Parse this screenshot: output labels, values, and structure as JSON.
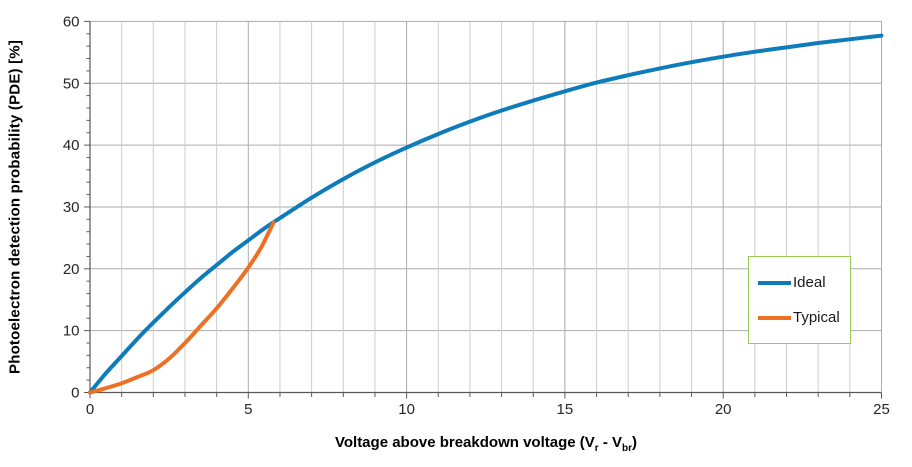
{
  "chart_data": {
    "type": "line",
    "title": "",
    "xlabel": "Voltage above breakdown voltage (Vr - Vbr)",
    "ylabel": "Photoelectron detection probability (PDE) [%]",
    "xaxis_title_parts": {
      "t1": "Voltage above breakdown voltage (V",
      "s1": "r",
      "t2": " - V",
      "s2": "br",
      "t3": ")"
    },
    "xlim": [
      0,
      25
    ],
    "ylim": [
      0,
      60
    ],
    "x_grid_step": 1,
    "y_grid_step": 10,
    "x_major": 5,
    "x_minor": 1,
    "y_major": 10,
    "y_minor": 2,
    "x_ticks": [
      0,
      5,
      10,
      15,
      20,
      25
    ],
    "y_ticks": [
      0,
      10,
      20,
      30,
      40,
      50,
      60
    ],
    "grid": {
      "vertical_every": 1,
      "horizontal_every": 10
    },
    "legend_position": "middle-right",
    "series": [
      {
        "name": "Ideal",
        "color": "#0E7CBA",
        "x": [
          0,
          0.5,
          1,
          1.5,
          2,
          2.5,
          3,
          3.5,
          4,
          4.5,
          5,
          5.5,
          6,
          7,
          8,
          9,
          10,
          11,
          12,
          13,
          14,
          15,
          16,
          17,
          18,
          19,
          20,
          21,
          22,
          23,
          24,
          25
        ],
        "y": [
          0,
          3.1,
          5.9,
          8.7,
          11.3,
          13.8,
          16.2,
          18.5,
          20.6,
          22.7,
          24.6,
          26.5,
          28.2,
          31.5,
          34.5,
          37.2,
          39.6,
          41.8,
          43.8,
          45.6,
          47.2,
          48.7,
          50.1,
          51.3,
          52.4,
          53.4,
          54.3,
          55.1,
          55.8,
          56.5,
          57.1,
          57.7
        ]
      },
      {
        "name": "Typical",
        "color": "#ED7124",
        "x": [
          0,
          0.5,
          1,
          1.5,
          2,
          2.5,
          3,
          3.5,
          4,
          4.5,
          5,
          5.4,
          5.8
        ],
        "y": [
          0,
          0.7,
          1.5,
          2.5,
          3.6,
          5.5,
          8.0,
          10.8,
          13.6,
          16.8,
          20.2,
          23.4,
          27.5
        ]
      }
    ]
  },
  "legend": {
    "border_color": "#9CCB52",
    "items": [
      {
        "label": "Ideal",
        "color": "#0E7CBA"
      },
      {
        "label": "Typical",
        "color": "#ED7124"
      }
    ]
  },
  "colors": {
    "background": "#ffffff",
    "grid_major": "#ABABAB",
    "grid_minor": "#CDCDCD",
    "axis": "#595959",
    "tick_text": "#262626",
    "title_text": "#000000"
  }
}
